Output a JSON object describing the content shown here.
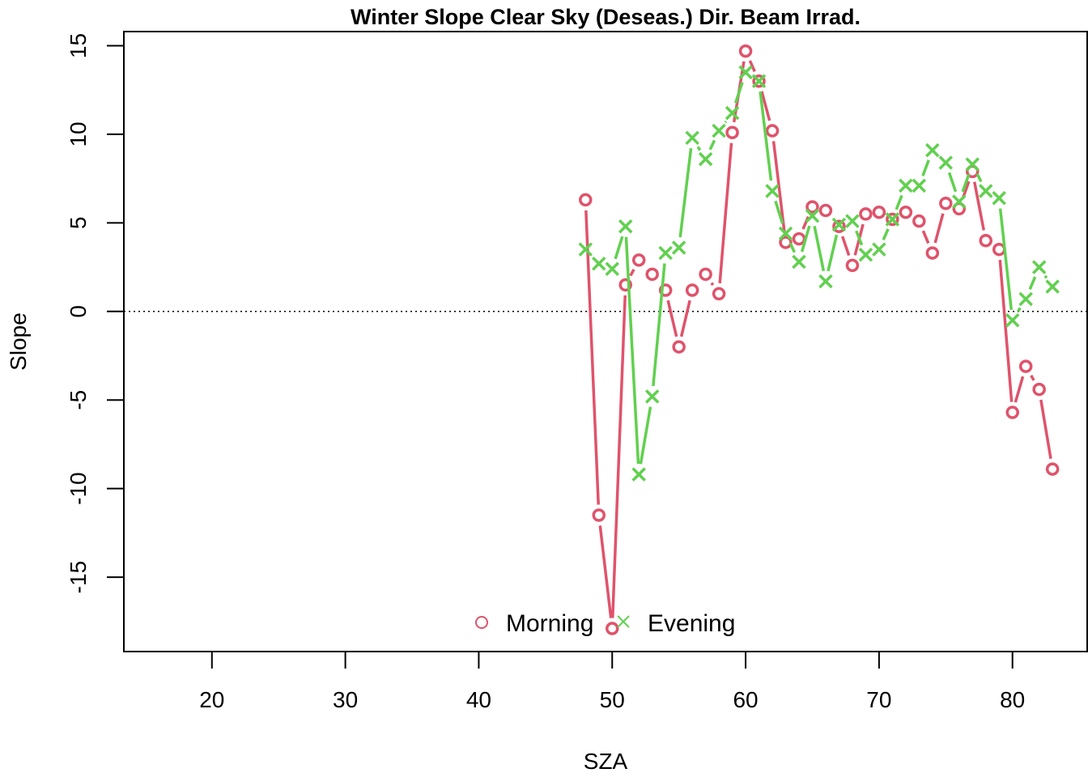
{
  "chart_data": {
    "type": "line",
    "title": "Winter Slope Clear Sky (Deseas.) Dir. Beam Irrad.",
    "xlabel": "SZA",
    "ylabel": "Slope",
    "xlim": [
      13.4,
      85.6
    ],
    "ylim": [
      -19.2,
      15.8
    ],
    "xticks": [
      20,
      30,
      40,
      50,
      60,
      70,
      80
    ],
    "yticks": [
      -15,
      -10,
      -5,
      0,
      5,
      10,
      15
    ],
    "reference_line": {
      "y": 0,
      "style": "dotted"
    },
    "legend": {
      "placement": "bottom-center",
      "orientation": "horizontal"
    },
    "colors": {
      "morning": "#DF536B",
      "evening": "#61D04F"
    },
    "series": [
      {
        "name": "Morning",
        "marker": "circle",
        "color": "#DF536B",
        "x": [
          48,
          49,
          50,
          51,
          52,
          53,
          54,
          55,
          56,
          57,
          58,
          59,
          60,
          61,
          62,
          63,
          64,
          65,
          66,
          67,
          68,
          69,
          70,
          71,
          72,
          73,
          74,
          75,
          76,
          77,
          78,
          79,
          80,
          81,
          82,
          83
        ],
        "y": [
          6.3,
          -11.5,
          -17.9,
          1.5,
          2.9,
          2.1,
          1.2,
          -2.0,
          1.2,
          2.1,
          1.0,
          10.1,
          14.7,
          13.0,
          10.2,
          3.9,
          4.1,
          5.9,
          5.7,
          4.8,
          2.6,
          5.5,
          5.6,
          5.2,
          5.6,
          5.1,
          3.3,
          6.1,
          5.8,
          7.9,
          4.0,
          3.5,
          -5.7,
          -3.1,
          -4.4,
          -8.9
        ]
      },
      {
        "name": "Evening",
        "marker": "cross",
        "color": "#61D04F",
        "x": [
          48,
          49,
          50,
          51,
          52,
          53,
          54,
          55,
          56,
          57,
          58,
          59,
          60,
          61,
          62,
          63,
          64,
          65,
          66,
          67,
          68,
          69,
          70,
          71,
          72,
          73,
          74,
          75,
          76,
          77,
          78,
          79,
          80,
          81,
          82,
          83
        ],
        "y": [
          3.5,
          2.7,
          2.4,
          4.8,
          -9.2,
          -4.8,
          3.3,
          3.6,
          9.8,
          8.6,
          10.2,
          11.2,
          13.5,
          13.0,
          6.8,
          4.4,
          2.8,
          5.4,
          1.7,
          4.9,
          5.1,
          3.2,
          3.5,
          5.2,
          7.1,
          7.1,
          9.1,
          8.4,
          6.2,
          8.3,
          6.8,
          6.4,
          -0.5,
          0.7,
          2.5,
          1.4
        ]
      }
    ]
  }
}
